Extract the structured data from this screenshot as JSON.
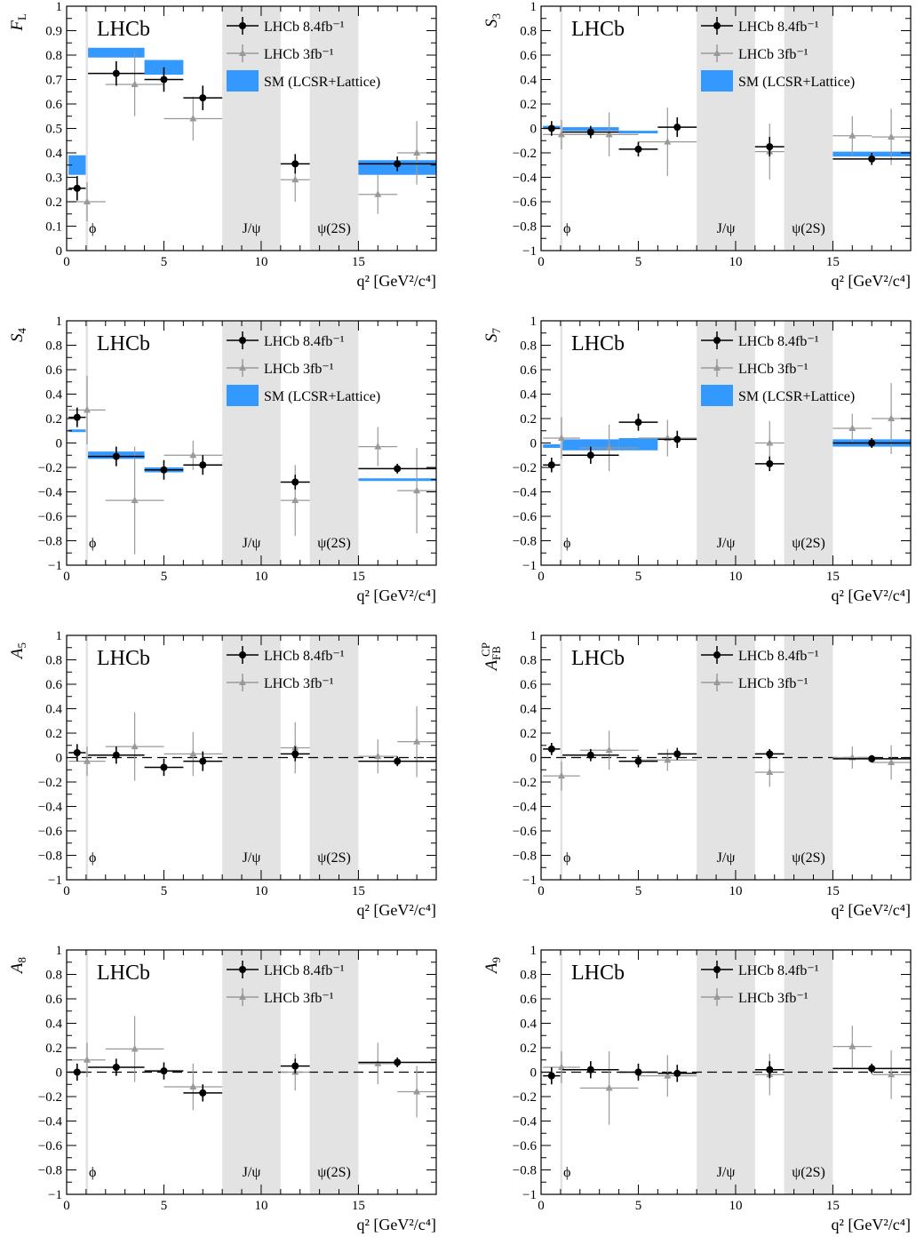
{
  "x_axis": {
    "label": "q² [GeV²/c⁴]",
    "range": [
      0,
      19
    ],
    "ticks": [
      0,
      5,
      10,
      15
    ],
    "tick_labels": [
      "0",
      "5",
      "10",
      "15"
    ]
  },
  "regions": [
    {
      "label": "",
      "range": [
        0.98,
        1.1
      ]
    },
    {
      "label": "J/ψ",
      "range": [
        8.0,
        11.0
      ]
    },
    {
      "label": "ψ(2S)",
      "range": [
        12.5,
        15.0
      ]
    }
  ],
  "phi_label": "ϕ",
  "brand": "LHCb",
  "legend": {
    "run2": "LHCb 8.4fb⁻¹",
    "run1": "LHCb 3fb⁻¹",
    "sm": "SM (LCSR+Lattice)"
  },
  "colors": {
    "run2": "#000000",
    "run1": "#999999",
    "sm": "#3399ff",
    "veto": "#e3e3e3"
  },
  "bins_8p4": [
    [
      0.1,
      0.98
    ],
    [
      1.1,
      4.0
    ],
    [
      4.0,
      6.0
    ],
    [
      6.0,
      8.0
    ],
    [
      11.0,
      12.5
    ],
    [
      15.0,
      19.0
    ]
  ],
  "bins_3": [
    [
      0.1,
      2.0
    ],
    [
      2.0,
      5.0
    ],
    [
      5.0,
      8.0
    ],
    [
      11.0,
      12.5
    ],
    [
      15.0,
      17.0
    ],
    [
      17.0,
      19.0
    ]
  ],
  "chart_data": [
    {
      "type": "scatter",
      "ylabel": "F",
      "ylabel_sub": "L",
      "ylim": [
        0,
        1
      ],
      "yticks": [
        0,
        0.1,
        0.2,
        0.3,
        0.4,
        0.5,
        0.6,
        0.7,
        0.8,
        0.9,
        1
      ],
      "ytick_labels": [
        "0",
        "0.1",
        "0.2",
        "0.3",
        "0.4",
        "0.5",
        "0.6",
        "0.7",
        "0.8",
        "0.9",
        "1"
      ],
      "has_sm": true,
      "zero_line": false,
      "series": [
        {
          "key": "run2",
          "x": [
            0.54,
            2.55,
            5.0,
            7.0,
            11.75,
            17.0
          ],
          "y": [
            0.255,
            0.725,
            0.7,
            0.625,
            0.355,
            0.355
          ],
          "err": [
            0.05,
            0.05,
            0.05,
            0.05,
            0.04,
            0.03
          ]
        },
        {
          "key": "run1",
          "x": [
            1.05,
            3.5,
            6.5,
            11.75,
            16.0,
            18.0
          ],
          "y": [
            0.2,
            0.68,
            0.54,
            0.29,
            0.23,
            0.4
          ],
          "err": [
            0.08,
            0.13,
            0.09,
            0.09,
            0.08,
            0.13
          ]
        },
        {
          "key": "sm",
          "bins": [
            [
              0.1,
              0.98
            ],
            [
              1.1,
              4.0
            ],
            [
              4.0,
              6.0
            ],
            [
              15.0,
              19.0
            ]
          ],
          "lo": [
            0.31,
            0.79,
            0.72,
            0.31
          ],
          "hi": [
            0.39,
            0.83,
            0.78,
            0.37
          ]
        }
      ]
    },
    {
      "type": "scatter",
      "ylabel": "S",
      "ylabel_sub": "3",
      "ylim": [
        -1,
        1
      ],
      "yticks": [
        -1,
        -0.8,
        -0.6,
        -0.4,
        -0.2,
        0,
        0.2,
        0.4,
        0.6,
        0.8,
        1
      ],
      "ytick_labels": [
        "−1",
        "−0.8",
        "−0.6",
        "−0.4",
        "−0.2",
        "0",
        "0.2",
        "0.4",
        "0.6",
        "0.8",
        "1"
      ],
      "has_sm": true,
      "zero_line": false,
      "series": [
        {
          "key": "run2",
          "x": [
            0.54,
            2.55,
            5.0,
            7.0,
            11.75,
            17.0
          ],
          "y": [
            0.0,
            -0.03,
            -0.17,
            0.01,
            -0.15,
            -0.25
          ],
          "err": [
            0.06,
            0.05,
            0.06,
            0.08,
            0.08,
            0.05
          ]
        },
        {
          "key": "run1",
          "x": [
            1.05,
            3.5,
            6.5,
            11.75,
            16.0,
            18.0
          ],
          "y": [
            -0.05,
            -0.05,
            -0.11,
            -0.19,
            -0.06,
            -0.07
          ],
          "err": [
            0.12,
            0.18,
            0.28,
            0.23,
            0.16,
            0.23
          ]
        },
        {
          "key": "sm",
          "bins": [
            [
              0.1,
              0.98
            ],
            [
              1.1,
              4.0
            ],
            [
              4.0,
              6.0
            ],
            [
              15.0,
              19.0
            ]
          ],
          "lo": [
            0.0,
            -0.02,
            -0.04,
            -0.23
          ],
          "hi": [
            0.02,
            0.01,
            -0.02,
            -0.19
          ]
        }
      ]
    },
    {
      "type": "scatter",
      "ylabel": "S",
      "ylabel_sub": "4",
      "ylim": [
        -1,
        1
      ],
      "yticks": [
        -1,
        -0.8,
        -0.6,
        -0.4,
        -0.2,
        0,
        0.2,
        0.4,
        0.6,
        0.8,
        1
      ],
      "ytick_labels": [
        "−1",
        "−0.8",
        "−0.6",
        "−0.4",
        "−0.2",
        "0",
        "0.2",
        "0.4",
        "0.6",
        "0.8",
        "1"
      ],
      "has_sm": true,
      "zero_line": false,
      "series": [
        {
          "key": "run2",
          "x": [
            0.54,
            2.55,
            5.0,
            7.0,
            11.75,
            17.0
          ],
          "y": [
            0.21,
            -0.11,
            -0.22,
            -0.18,
            -0.32,
            -0.21
          ],
          "err": [
            0.08,
            0.08,
            0.08,
            0.08,
            0.06,
            0.04
          ]
        },
        {
          "key": "run1",
          "x": [
            1.05,
            3.5,
            6.5,
            11.75,
            16.0,
            18.0
          ],
          "y": [
            0.27,
            -0.47,
            -0.1,
            -0.47,
            -0.03,
            -0.39
          ],
          "err": [
            0.28,
            0.44,
            0.12,
            0.29,
            0.16,
            0.35
          ]
        },
        {
          "key": "sm",
          "bins": [
            [
              0.1,
              0.98
            ],
            [
              1.1,
              4.0
            ],
            [
              4.0,
              6.0
            ],
            [
              15.0,
              19.0
            ]
          ],
          "lo": [
            0.09,
            -0.13,
            -0.24,
            -0.31
          ],
          "hi": [
            0.11,
            -0.07,
            -0.2,
            -0.29
          ]
        }
      ]
    },
    {
      "type": "scatter",
      "ylabel": "S",
      "ylabel_sub": "7",
      "ylim": [
        -1,
        1
      ],
      "yticks": [
        -1,
        -0.8,
        -0.6,
        -0.4,
        -0.2,
        0,
        0.2,
        0.4,
        0.6,
        0.8,
        1
      ],
      "ytick_labels": [
        "−1",
        "−0.8",
        "−0.6",
        "−0.4",
        "−0.2",
        "0",
        "0.2",
        "0.4",
        "0.6",
        "0.8",
        "1"
      ],
      "has_sm": true,
      "zero_line": false,
      "series": [
        {
          "key": "run2",
          "x": [
            0.54,
            2.55,
            5.0,
            7.0,
            11.75,
            17.0
          ],
          "y": [
            -0.18,
            -0.1,
            0.17,
            0.03,
            -0.17,
            0.0
          ],
          "err": [
            0.06,
            0.07,
            0.07,
            0.07,
            0.06,
            0.04
          ]
        },
        {
          "key": "run1",
          "x": [
            1.05,
            3.5,
            6.5,
            11.75,
            16.0,
            18.0
          ],
          "y": [
            0.04,
            -0.04,
            0.04,
            0.0,
            0.12,
            0.2
          ],
          "err": [
            0.17,
            0.19,
            0.15,
            0.18,
            0.12,
            0.29
          ]
        },
        {
          "key": "sm",
          "bins": [
            [
              0.1,
              0.98
            ],
            [
              1.1,
              4.0
            ],
            [
              4.0,
              6.0
            ],
            [
              15.0,
              19.0
            ]
          ],
          "lo": [
            -0.04,
            -0.06,
            -0.06,
            -0.03
          ],
          "hi": [
            -0.01,
            0.03,
            0.04,
            0.03
          ]
        }
      ]
    },
    {
      "type": "scatter",
      "ylabel": "A",
      "ylabel_sub": "5",
      "ylim": [
        -1,
        1
      ],
      "yticks": [
        -1,
        -0.8,
        -0.6,
        -0.4,
        -0.2,
        0,
        0.2,
        0.4,
        0.6,
        0.8,
        1
      ],
      "ytick_labels": [
        "−1",
        "−0.8",
        "−0.6",
        "−0.4",
        "−0.2",
        "0",
        "0.2",
        "0.4",
        "0.6",
        "0.8",
        "1"
      ],
      "has_sm": false,
      "zero_line": true,
      "series": [
        {
          "key": "run2",
          "x": [
            0.54,
            2.55,
            5.0,
            7.0,
            11.75,
            17.0
          ],
          "y": [
            0.04,
            0.02,
            -0.08,
            -0.03,
            0.03,
            -0.03
          ],
          "err": [
            0.07,
            0.07,
            0.07,
            0.08,
            0.06,
            0.04
          ]
        },
        {
          "key": "run1",
          "x": [
            1.05,
            3.5,
            6.5,
            11.75,
            16.0,
            18.0
          ],
          "y": [
            -0.03,
            0.09,
            0.03,
            0.08,
            0.01,
            0.13
          ],
          "err": [
            0.12,
            0.28,
            0.18,
            0.21,
            0.14,
            0.29
          ]
        }
      ]
    },
    {
      "type": "scatter",
      "ylabel": "A",
      "ylabel_sub": "FB",
      "ylabel_sup": "CP",
      "ylim": [
        -1,
        1
      ],
      "yticks": [
        -1,
        -0.8,
        -0.6,
        -0.4,
        -0.2,
        0,
        0.2,
        0.4,
        0.6,
        0.8,
        1
      ],
      "ytick_labels": [
        "−1",
        "−0.8",
        "−0.6",
        "−0.4",
        "−0.2",
        "0",
        "0.2",
        "0.4",
        "0.6",
        "0.8",
        "1"
      ],
      "has_sm": false,
      "zero_line": true,
      "series": [
        {
          "key": "run2",
          "x": [
            0.54,
            2.55,
            5.0,
            7.0,
            11.75,
            17.0
          ],
          "y": [
            0.07,
            0.02,
            -0.03,
            0.03,
            0.03,
            -0.01
          ],
          "err": [
            0.05,
            0.05,
            0.05,
            0.05,
            0.04,
            0.03
          ]
        },
        {
          "key": "run1",
          "x": [
            1.05,
            3.5,
            6.5,
            11.75,
            16.0,
            18.0
          ],
          "y": [
            -0.15,
            0.06,
            -0.02,
            -0.12,
            0.0,
            -0.04
          ],
          "err": [
            0.12,
            0.16,
            0.09,
            0.12,
            0.09,
            0.14
          ]
        }
      ]
    },
    {
      "type": "scatter",
      "ylabel": "A",
      "ylabel_sub": "8",
      "ylim": [
        -1,
        1
      ],
      "yticks": [
        -1,
        -0.8,
        -0.6,
        -0.4,
        -0.2,
        0,
        0.2,
        0.4,
        0.6,
        0.8,
        1
      ],
      "ytick_labels": [
        "−1",
        "−0.8",
        "−0.6",
        "−0.4",
        "−0.2",
        "0",
        "0.2",
        "0.4",
        "0.6",
        "0.8",
        "1"
      ],
      "has_sm": false,
      "zero_line": true,
      "series": [
        {
          "key": "run2",
          "x": [
            0.54,
            2.55,
            5.0,
            7.0,
            11.75,
            17.0
          ],
          "y": [
            0.0,
            0.04,
            0.01,
            -0.17,
            0.05,
            0.08
          ],
          "err": [
            0.07,
            0.07,
            0.07,
            0.07,
            0.06,
            0.04
          ]
        },
        {
          "key": "run1",
          "x": [
            1.05,
            3.5,
            6.5,
            11.75,
            16.0,
            18.0
          ],
          "y": [
            0.1,
            0.19,
            -0.12,
            0.0,
            0.07,
            -0.16
          ],
          "err": [
            0.14,
            0.27,
            0.19,
            0.15,
            0.17,
            0.21
          ]
        }
      ]
    },
    {
      "type": "scatter",
      "ylabel": "A",
      "ylabel_sub": "9",
      "ylim": [
        -1,
        1
      ],
      "yticks": [
        -1,
        -0.8,
        -0.6,
        -0.4,
        -0.2,
        0,
        0.2,
        0.4,
        0.6,
        0.8,
        1
      ],
      "ytick_labels": [
        "−1",
        "−0.8",
        "−0.6",
        "−0.4",
        "−0.2",
        "0",
        "0.2",
        "0.4",
        "0.6",
        "0.8",
        "1"
      ],
      "has_sm": false,
      "zero_line": true,
      "series": [
        {
          "key": "run2",
          "x": [
            0.54,
            2.55,
            5.0,
            7.0,
            11.75,
            17.0
          ],
          "y": [
            -0.03,
            0.02,
            0.0,
            -0.01,
            0.02,
            0.03
          ],
          "err": [
            0.07,
            0.07,
            0.07,
            0.07,
            0.07,
            0.04
          ]
        },
        {
          "key": "run1",
          "x": [
            1.05,
            3.5,
            6.5,
            11.75,
            16.0,
            18.0
          ],
          "y": [
            0.04,
            -0.13,
            -0.03,
            -0.02,
            0.21,
            -0.02
          ],
          "err": [
            0.13,
            0.3,
            0.17,
            0.17,
            0.17,
            0.2
          ]
        }
      ]
    }
  ]
}
